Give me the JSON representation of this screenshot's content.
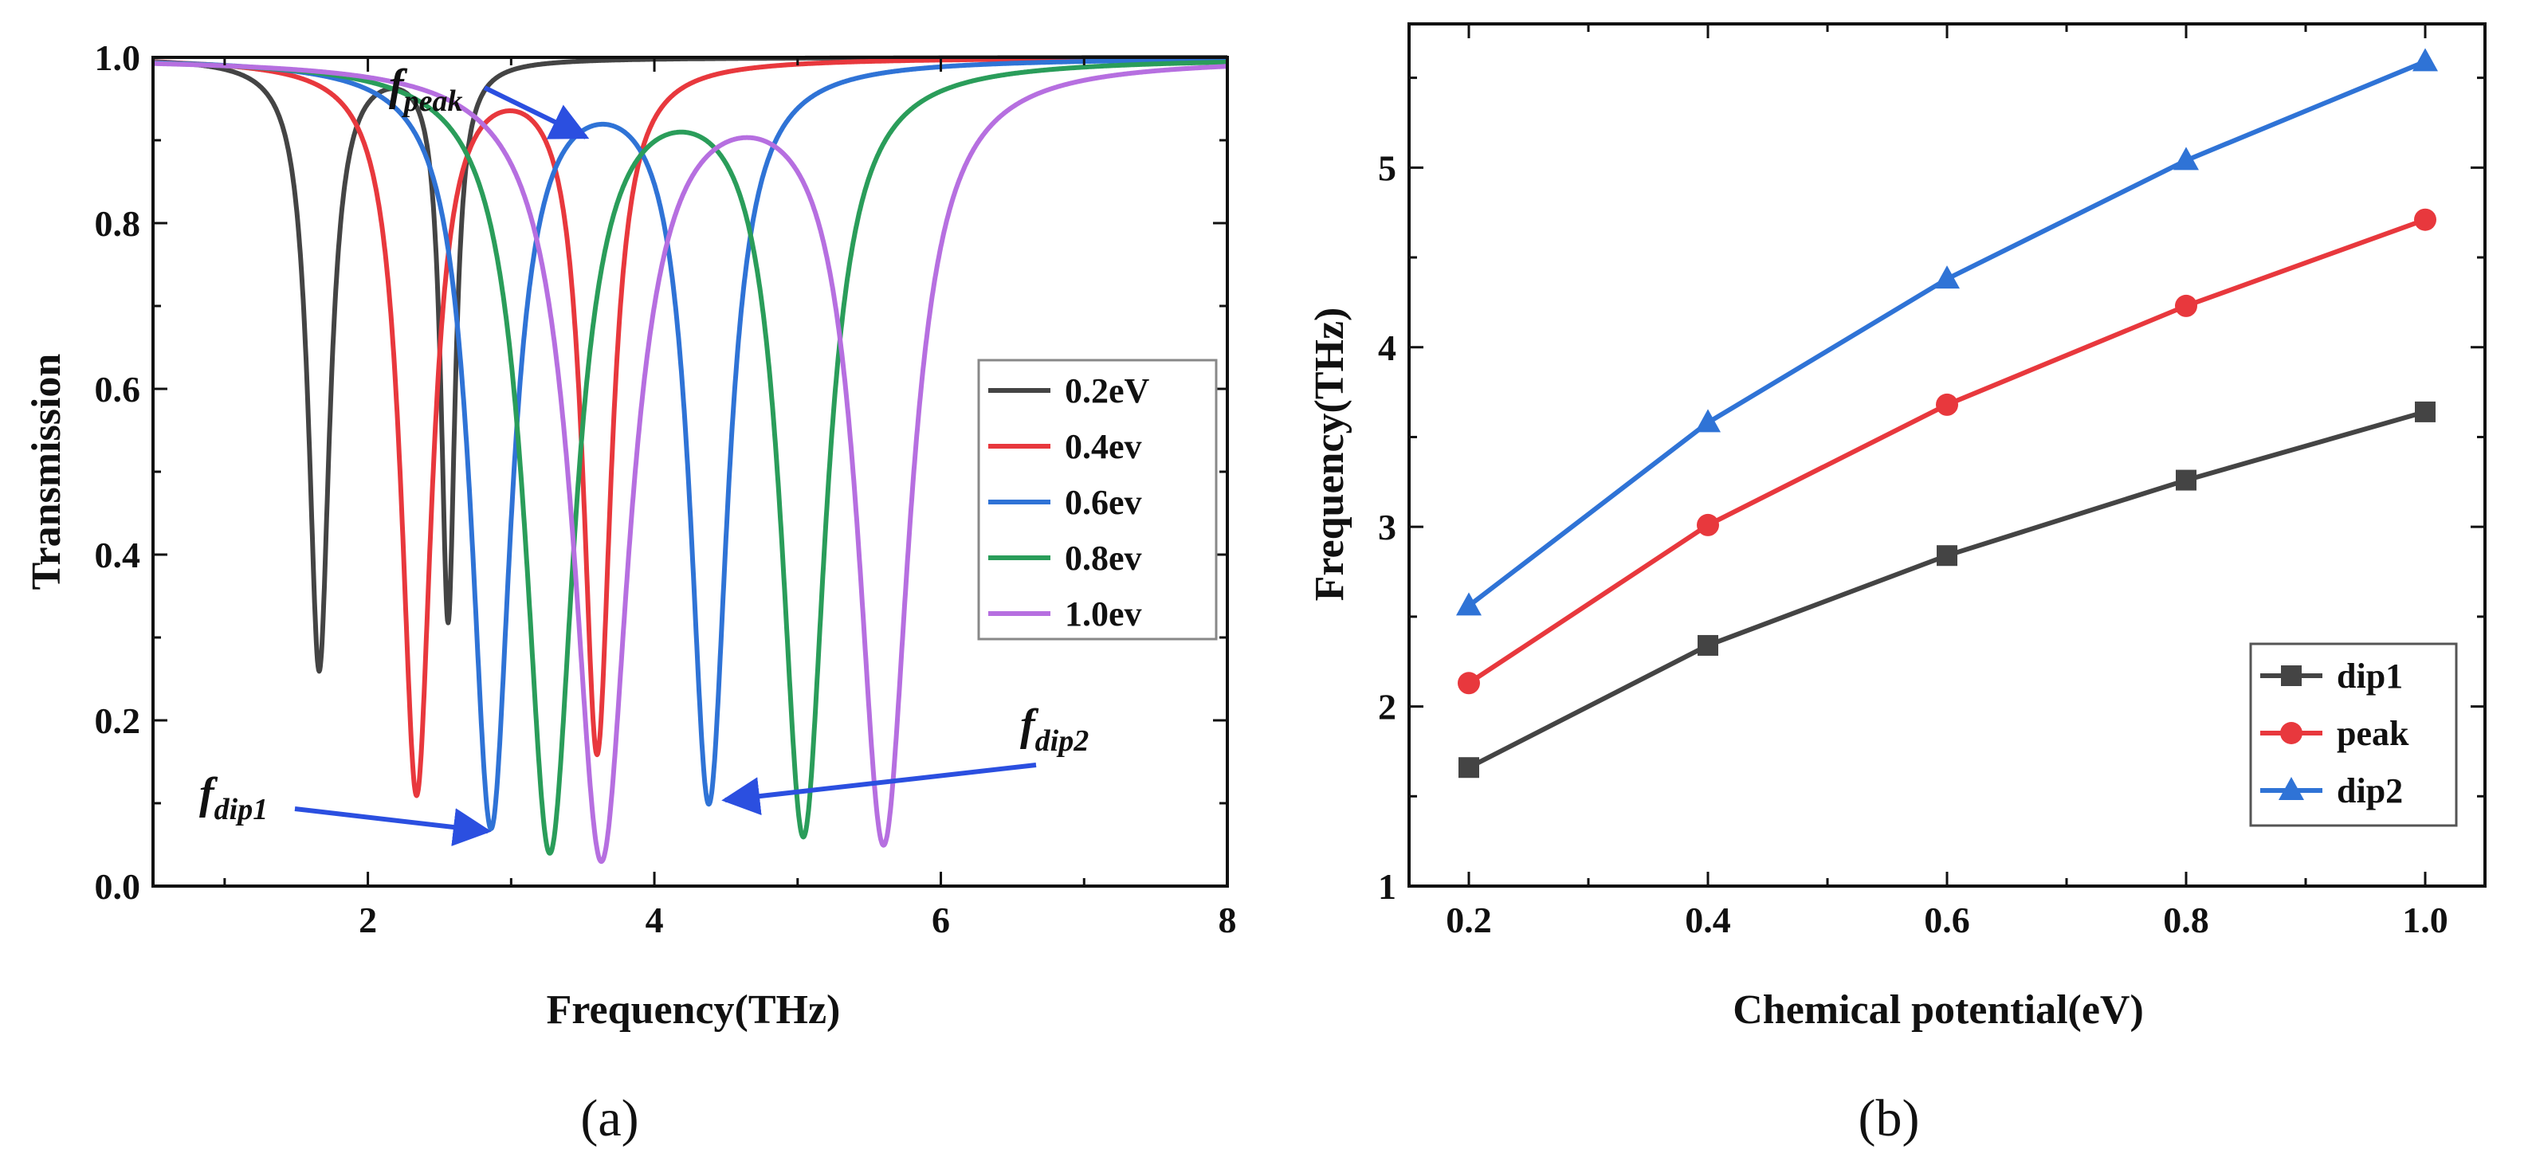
{
  "chart_data": [
    {
      "panel": "a",
      "caption": "(a)",
      "type": "line",
      "xlabel": "Frequency(THz)",
      "ylabel": "Transmission",
      "xlim": [
        0.5,
        8
      ],
      "ylim": [
        0,
        1
      ],
      "xticks": [
        "2",
        "4",
        "6",
        "8"
      ],
      "yticks": [
        "0.0",
        "0.2",
        "0.4",
        "0.6",
        "0.8",
        "1.0"
      ],
      "legend_position": "center-right",
      "annotations": [
        {
          "base": "f",
          "sub": "peak"
        },
        {
          "base": "f",
          "sub": "dip1"
        },
        {
          "base": "f",
          "sub": "dip2"
        }
      ],
      "series": [
        {
          "name": "0.2eV",
          "color": "#444444",
          "dips": [
            {
              "f": 1.66,
              "t": 0.26,
              "w": 0.09
            },
            {
              "f": 2.56,
              "t": 0.32,
              "w": 0.06
            }
          ],
          "peak": {
            "f": 2.13,
            "t": 0.9
          }
        },
        {
          "name": "0.4ev",
          "color": "#e8383d",
          "dips": [
            {
              "f": 2.34,
              "t": 0.11,
              "w": 0.13
            },
            {
              "f": 3.6,
              "t": 0.16,
              "w": 0.12
            }
          ],
          "peak": {
            "f": 3.01,
            "t": 0.9
          }
        },
        {
          "name": "0.6ev",
          "color": "#2f73d6",
          "dips": [
            {
              "f": 2.86,
              "t": 0.07,
              "w": 0.17
            },
            {
              "f": 4.38,
              "t": 0.1,
              "w": 0.16
            }
          ],
          "peak": {
            "f": 3.68,
            "t": 0.9
          }
        },
        {
          "name": "0.8ev",
          "color": "#2a9d5a",
          "dips": [
            {
              "f": 3.27,
              "t": 0.04,
              "w": 0.21
            },
            {
              "f": 5.04,
              "t": 0.06,
              "w": 0.19
            }
          ],
          "peak": {
            "f": 4.23,
            "t": 0.9
          }
        },
        {
          "name": "1.0ev",
          "color": "#b66fe0",
          "dips": [
            {
              "f": 3.63,
              "t": 0.03,
              "w": 0.24
            },
            {
              "f": 5.6,
              "t": 0.05,
              "w": 0.22
            }
          ],
          "peak": {
            "f": 4.71,
            "t": 0.9
          }
        }
      ]
    },
    {
      "panel": "b",
      "caption": "(b)",
      "type": "line",
      "xlabel": "Chemical potential(eV)",
      "ylabel": "Frequency(THz)",
      "x": [
        0.2,
        0.4,
        0.6,
        0.8,
        1.0
      ],
      "xlim": [
        0.15,
        1.05
      ],
      "ylim": [
        1,
        5.8
      ],
      "xticks": [
        "0.2",
        "0.4",
        "0.6",
        "0.8",
        "1.0"
      ],
      "yticks": [
        "1",
        "2",
        "3",
        "4",
        "5"
      ],
      "legend_position": "bottom-right",
      "series": [
        {
          "name": "dip1",
          "color": "#444444",
          "marker": "square",
          "values": [
            1.66,
            2.34,
            2.84,
            3.26,
            3.64
          ]
        },
        {
          "name": "peak",
          "color": "#e8383d",
          "marker": "circle",
          "values": [
            2.13,
            3.01,
            3.68,
            4.23,
            4.71
          ]
        },
        {
          "name": "dip2",
          "color": "#2f73d6",
          "marker": "triangle",
          "values": [
            2.56,
            3.58,
            4.38,
            5.04,
            5.59
          ]
        }
      ]
    }
  ]
}
